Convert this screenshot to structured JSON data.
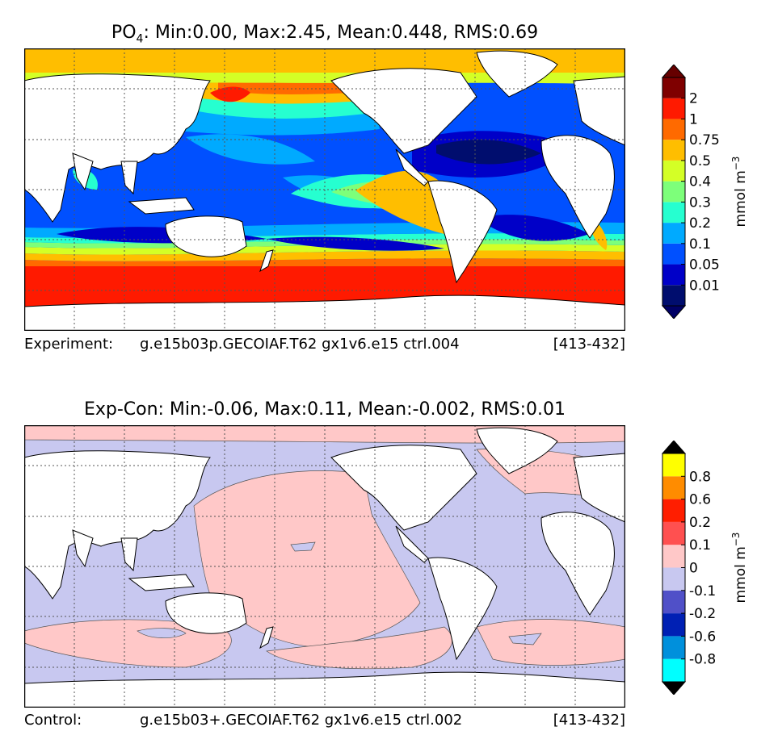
{
  "panels": [
    {
      "title_var": "PO",
      "title_sub": "4",
      "title_stats": ": Min:0.00, Max:2.45, Mean:0.448, RMS:0.69",
      "caption_label": "Experiment:",
      "caption_case": "g.e15b03p.GECOIAF.T62 gx1v6.e15 ctrl.004",
      "caption_years": "[413-432]",
      "colorbar": {
        "unit_label": "mmol m",
        "unit_exp": "−3",
        "ticks": [
          "0.01",
          "0.05",
          "0.1",
          "0.2",
          "0.3",
          "0.4",
          "0.5",
          "0.75",
          "1",
          "2"
        ],
        "colors": [
          "#000d6e",
          "#0000c8",
          "#0050ff",
          "#00aaff",
          "#26ffd0",
          "#7dff7a",
          "#d4ff26",
          "#ffbe00",
          "#ff6a00",
          "#ff1a00",
          "#7f0000"
        ],
        "under_color": "#000066",
        "over_color": "#660000"
      }
    },
    {
      "title_stats": "Exp-Con: Min:-0.06, Max:0.11, Mean:-0.002, RMS:0.01",
      "caption_label": "Control:",
      "caption_case": "g.e15b03+.GECOIAF.T62 gx1v6.e15 ctrl.002",
      "caption_years": "[413-432]",
      "colorbar": {
        "unit_label": "mmol m",
        "unit_exp": "−3",
        "ticks": [
          "-0.8",
          "-0.6",
          "-0.2",
          "-0.1",
          "0",
          "0.1",
          "0.2",
          "0.6",
          "0.8"
        ],
        "colors": [
          "#00ffff",
          "#0090dc",
          "#0020b4",
          "#5050c8",
          "#c8c8f0",
          "#ffc8c8",
          "#ff5050",
          "#ff1e00",
          "#ff8c00",
          "#ffff00"
        ],
        "under_color": "#000000",
        "over_color": "#000000"
      }
    }
  ]
}
